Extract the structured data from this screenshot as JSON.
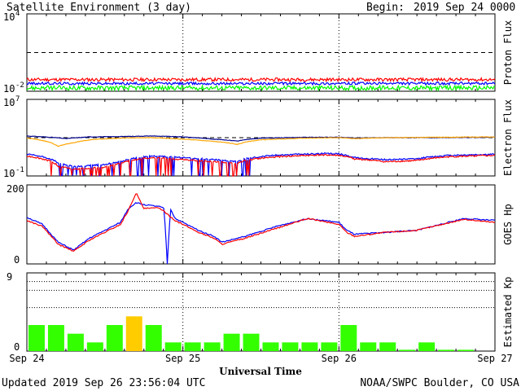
{
  "header": {
    "title": "Satellite Environment (3 day)",
    "begin_label": "Begin:",
    "begin_value": "2019 Sep 24 0000 UTC"
  },
  "footer": {
    "updated": "Updated 2019 Sep 26 23:56:04 UTC",
    "credit": "NOAA/SWPC Boulder, CO USA"
  },
  "colors": {
    "red": "#ff0000",
    "blue": "#0000ff",
    "green": "#00ff00",
    "orange": "#ffa500",
    "navy": "#00008b",
    "kp_green": "#33ff00",
    "kp_yellow": "#ffcc00"
  },
  "chart_data": [
    {
      "type": "line",
      "ylabel": "Proton Flux",
      "yscale": "log",
      "ylim": [
        0.01,
        10000
      ],
      "yticks": [
        {
          "base": "10",
          "exp": "4"
        },
        {
          "base": "10",
          "exp": "-2"
        }
      ],
      "threshold": 10,
      "x_days": [
        0,
        1,
        2,
        3
      ],
      "series": [
        {
          "color": "red",
          "level": 0.08,
          "noise": 0.25
        },
        {
          "color": "blue",
          "level": 0.04,
          "noise": 0.2
        },
        {
          "color": "green",
          "level": 0.018,
          "noise": 0.35
        }
      ]
    },
    {
      "type": "line",
      "ylabel": "Electron Flux",
      "yscale": "log",
      "ylim": [
        0.1,
        10000000
      ],
      "yticks": [
        {
          "base": "10",
          "exp": "7"
        },
        {
          "base": "10",
          "exp": "-1"
        }
      ],
      "threshold": 1000,
      "series": [
        {
          "color": "navy",
          "points": [
            [
              0,
              1500
            ],
            [
              0.15,
              1100
            ],
            [
              0.25,
              800
            ],
            [
              0.4,
              1200
            ],
            [
              0.6,
              1300
            ],
            [
              0.8,
              1500
            ],
            [
              1.0,
              1200
            ],
            [
              1.2,
              700
            ],
            [
              1.35,
              450
            ],
            [
              1.5,
              900
            ],
            [
              1.8,
              1100
            ],
            [
              2.0,
              1100
            ],
            [
              2.1,
              900
            ],
            [
              2.3,
              1000
            ],
            [
              2.6,
              1000
            ],
            [
              3.0,
              1100
            ]
          ]
        },
        {
          "color": "orange",
          "points": [
            [
              0,
              900
            ],
            [
              0.1,
              500
            ],
            [
              0.2,
              120
            ],
            [
              0.3,
              300
            ],
            [
              0.45,
              700
            ],
            [
              0.6,
              900
            ],
            [
              0.8,
              1000
            ],
            [
              1.0,
              700
            ],
            [
              1.2,
              400
            ],
            [
              1.35,
              200
            ],
            [
              1.5,
              600
            ],
            [
              1.8,
              900
            ],
            [
              2.0,
              1000
            ],
            [
              2.1,
              800
            ],
            [
              2.3,
              1000
            ],
            [
              2.6,
              1100
            ],
            [
              3.0,
              1200
            ]
          ]
        },
        {
          "color": "blue",
          "points": [
            [
              0,
              18
            ],
            [
              0.1,
              10
            ],
            [
              0.2,
              2
            ],
            [
              0.3,
              1
            ],
            [
              0.5,
              1.5
            ],
            [
              0.6,
              3
            ],
            [
              0.8,
              12
            ],
            [
              1.0,
              8
            ],
            [
              1.2,
              5
            ],
            [
              1.35,
              3
            ],
            [
              1.4,
              6
            ],
            [
              1.6,
              15
            ],
            [
              1.9,
              22
            ],
            [
              2.0,
              20
            ],
            [
              2.1,
              8
            ],
            [
              2.3,
              5
            ],
            [
              2.5,
              6
            ],
            [
              2.7,
              14
            ],
            [
              3.0,
              18
            ]
          ]
        },
        {
          "color": "red",
          "points": [
            [
              0,
              12
            ],
            [
              0.1,
              6
            ],
            [
              0.2,
              1
            ],
            [
              0.3,
              0.5
            ],
            [
              0.5,
              0.8
            ],
            [
              0.6,
              2
            ],
            [
              0.8,
              8
            ],
            [
              1.0,
              5
            ],
            [
              1.2,
              3
            ],
            [
              1.35,
              2
            ],
            [
              1.4,
              4
            ],
            [
              1.6,
              10
            ],
            [
              1.9,
              16
            ],
            [
              2.0,
              14
            ],
            [
              2.1,
              6
            ],
            [
              2.3,
              3
            ],
            [
              2.5,
              4
            ],
            [
              2.7,
              10
            ],
            [
              3.0,
              14
            ]
          ]
        }
      ]
    },
    {
      "type": "line",
      "ylabel": "GOES Hp",
      "ylim": [
        0,
        200
      ],
      "ytick_labels": [
        "200",
        "0"
      ],
      "series": [
        {
          "color": "blue",
          "points": [
            [
              0,
              118
            ],
            [
              0.1,
              100
            ],
            [
              0.2,
              55
            ],
            [
              0.3,
              35
            ],
            [
              0.4,
              65
            ],
            [
              0.5,
              85
            ],
            [
              0.6,
              105
            ],
            [
              0.65,
              140
            ],
            [
              0.7,
              155
            ],
            [
              0.75,
              150
            ],
            [
              0.85,
              145
            ],
            [
              0.88,
              140
            ],
            [
              0.9,
              0
            ],
            [
              0.92,
              140
            ],
            [
              0.95,
              115
            ],
            [
              1.0,
              105
            ],
            [
              1.1,
              85
            ],
            [
              1.2,
              70
            ],
            [
              1.25,
              55
            ],
            [
              1.3,
              60
            ],
            [
              1.4,
              70
            ],
            [
              1.6,
              95
            ],
            [
              1.8,
              115
            ],
            [
              2.0,
              105
            ],
            [
              2.05,
              85
            ],
            [
              2.1,
              75
            ],
            [
              2.3,
              80
            ],
            [
              2.5,
              85
            ],
            [
              2.8,
              115
            ],
            [
              3.0,
              110
            ]
          ]
        },
        {
          "color": "red",
          "points": [
            [
              0,
              110
            ],
            [
              0.1,
              95
            ],
            [
              0.2,
              50
            ],
            [
              0.3,
              32
            ],
            [
              0.4,
              60
            ],
            [
              0.5,
              80
            ],
            [
              0.6,
              100
            ],
            [
              0.65,
              135
            ],
            [
              0.7,
              180
            ],
            [
              0.75,
              140
            ],
            [
              0.85,
              142
            ],
            [
              0.95,
              110
            ],
            [
              1.0,
              100
            ],
            [
              1.1,
              80
            ],
            [
              1.2,
              65
            ],
            [
              1.25,
              50
            ],
            [
              1.3,
              55
            ],
            [
              1.4,
              65
            ],
            [
              1.6,
              90
            ],
            [
              1.8,
              115
            ],
            [
              2.0,
              100
            ],
            [
              2.05,
              80
            ],
            [
              2.1,
              70
            ],
            [
              2.3,
              80
            ],
            [
              2.5,
              85
            ],
            [
              2.8,
              113
            ],
            [
              3.0,
              105
            ]
          ]
        }
      ]
    },
    {
      "type": "bar",
      "ylabel": "Estimated Kp",
      "ylim": [
        0,
        9
      ],
      "ytick_labels": [
        "9",
        "0"
      ],
      "kp_levels": [
        3,
        3,
        2,
        1,
        3,
        4,
        3,
        1,
        1,
        1,
        2,
        2,
        1,
        1,
        1,
        1,
        3,
        1,
        1,
        0.15,
        1,
        0.15,
        0.15
      ],
      "kp_colors": [
        "kp_green",
        "kp_green",
        "kp_green",
        "kp_green",
        "kp_green",
        "kp_yellow",
        "kp_green",
        "kp_green",
        "kp_green",
        "kp_green",
        "kp_green",
        "kp_green",
        "kp_green",
        "kp_green",
        "kp_green",
        "kp_green",
        "kp_green",
        "kp_green",
        "kp_green",
        "kp_green",
        "kp_green",
        "kp_green",
        "kp_green"
      ]
    }
  ],
  "x_axis": {
    "label": "Universal Time",
    "tick_labels": [
      "Sep 24",
      "Sep 25",
      "Sep 26",
      "Sep 27"
    ]
  }
}
